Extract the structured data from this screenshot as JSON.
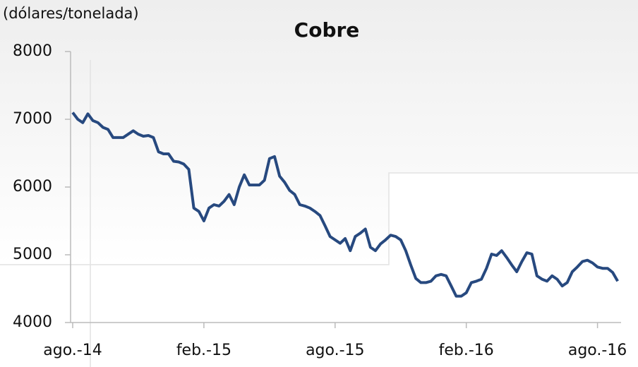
{
  "chart_data": {
    "type": "line",
    "title": "Cobre",
    "y_axis_label": "(dólares/tonelada)",
    "categories": [
      "ago.-14",
      null,
      null,
      null,
      null,
      null,
      null,
      null,
      null,
      null,
      null,
      null,
      null,
      null,
      null,
      null,
      null,
      null,
      null,
      null,
      null,
      null,
      null,
      null,
      null,
      null,
      "feb.-15",
      null,
      null,
      null,
      null,
      null,
      null,
      null,
      null,
      null,
      null,
      null,
      null,
      null,
      null,
      null,
      null,
      null,
      null,
      null,
      null,
      null,
      null,
      null,
      null,
      null,
      "ago.-15",
      null,
      null,
      null,
      null,
      null,
      null,
      null,
      null,
      null,
      null,
      null,
      null,
      null,
      null,
      null,
      null,
      null,
      null,
      null,
      null,
      null,
      null,
      null,
      null,
      null,
      "feb.-16",
      null,
      null,
      null,
      null,
      null,
      null,
      null,
      null,
      null,
      null,
      null,
      null,
      null,
      null,
      null,
      null,
      null,
      null,
      null,
      null,
      null,
      null,
      null,
      null,
      null,
      "ago.-16",
      null,
      null,
      null,
      null
    ],
    "series": [
      {
        "name": "Cobre",
        "color": "#27497f",
        "values": [
          7100,
          7000,
          6950,
          7080,
          6980,
          6950,
          6880,
          6850,
          6730,
          6730,
          6730,
          6780,
          6830,
          6780,
          6750,
          6760,
          6730,
          6520,
          6490,
          6490,
          6380,
          6370,
          6340,
          6260,
          5690,
          5640,
          5500,
          5690,
          5740,
          5720,
          5790,
          5890,
          5740,
          6000,
          6180,
          6030,
          6030,
          6030,
          6100,
          6420,
          6450,
          6160,
          6070,
          5950,
          5890,
          5740,
          5720,
          5690,
          5640,
          5580,
          5430,
          5270,
          5220,
          5170,
          5240,
          5060,
          5270,
          5320,
          5380,
          5110,
          5060,
          5160,
          5220,
          5290,
          5270,
          5220,
          5060,
          4850,
          4650,
          4590,
          4590,
          4610,
          4690,
          4710,
          4690,
          4540,
          4390,
          4390,
          4440,
          4590,
          4610,
          4640,
          4800,
          5010,
          4990,
          5060,
          4960,
          4850,
          4750,
          4900,
          5030,
          5010,
          4690,
          4640,
          4610,
          4690,
          4640,
          4540,
          4590,
          4750,
          4820,
          4900,
          4920,
          4880,
          4820,
          4800,
          4800,
          4740,
          4610
        ]
      }
    ],
    "ylim": [
      4000,
      8000
    ],
    "yticks": [
      4000,
      5000,
      6000,
      7000,
      8000
    ],
    "grid": false
  }
}
